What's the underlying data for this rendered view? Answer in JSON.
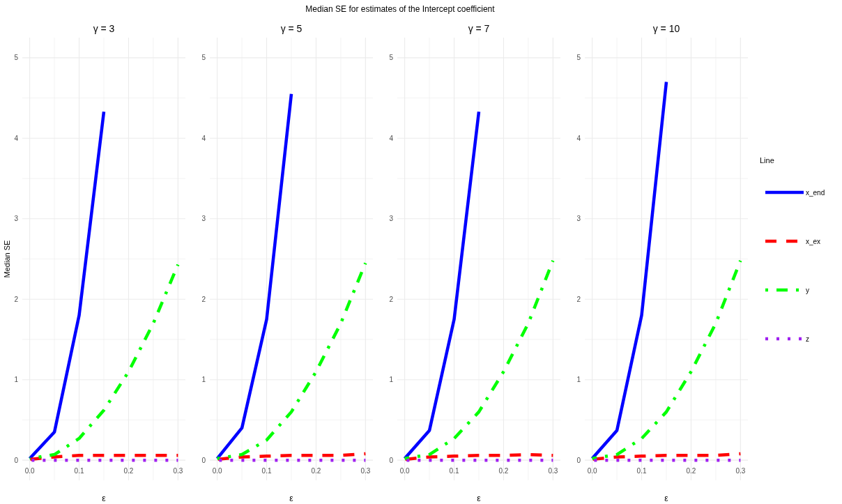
{
  "chart_data": [
    {
      "type": "line",
      "title": "γ = 3",
      "xlabel": "ε",
      "ylabel": "Median SE",
      "annotations": [
        "Median SE for estimates of the Intercept coefficient"
      ],
      "x": [
        0,
        0.05,
        0.1,
        0.15,
        0.2,
        0.25,
        0.3
      ],
      "xlim": [
        -0.015,
        0.315
      ],
      "ylim": [
        -0.25,
        5.25
      ],
      "xticks": [
        {
          "value": 0,
          "label": "0.0"
        },
        0.1,
        0.2,
        0.3,
        {
          "value": 0.05,
          "label": null
        },
        {
          "value": 0.15,
          "label": null
        },
        {
          "value": 0.25,
          "label": null
        }
      ],
      "yticks": [
        0,
        1,
        2,
        3,
        4,
        5,
        {
          "value": 0.5,
          "label": null
        },
        {
          "value": 1.5,
          "label": null
        },
        {
          "value": 2.5,
          "label": null
        },
        {
          "value": 3.5,
          "label": null
        },
        {
          "value": 4.5,
          "label": null
        }
      ],
      "grid": true,
      "legend": false,
      "series": [
        {
          "color": "#0000ff",
          "line_style": "solid",
          "values": [
            0.02,
            0.35,
            1.8,
            4.33,
            null,
            null,
            null
          ]
        },
        {
          "color": "#ff0000",
          "line_style": "dashed",
          "values": [
            0.01,
            0.04,
            0.06,
            0.06,
            0.06,
            0.06,
            0.06
          ]
        },
        {
          "color": "#00ff00",
          "line_style": "dashdot",
          "values": [
            0.02,
            0.07,
            0.27,
            0.62,
            1.1,
            1.7,
            2.43
          ]
        },
        {
          "color": "#a020f0",
          "line_style": "dotted",
          "values": [
            0,
            0,
            0,
            0,
            0,
            0,
            0
          ]
        }
      ]
    },
    {
      "type": "line",
      "title": "γ = 5",
      "xlabel": "ε",
      "x": [
        0,
        0.05,
        0.1,
        0.15,
        0.2,
        0.25,
        0.3
      ],
      "xlim": [
        -0.015,
        0.315
      ],
      "ylim": [
        -0.25,
        5.25
      ],
      "xticks": [
        {
          "value": 0,
          "label": "0.0"
        },
        0.1,
        0.2,
        0.3,
        {
          "value": 0.05,
          "label": null
        },
        {
          "value": 0.15,
          "label": null
        },
        {
          "value": 0.25,
          "label": null
        }
      ],
      "yticks": [
        0,
        1,
        2,
        3,
        4,
        5,
        {
          "value": 0.5,
          "label": null
        },
        {
          "value": 1.5,
          "label": null
        },
        {
          "value": 2.5,
          "label": null
        },
        {
          "value": 3.5,
          "label": null
        },
        {
          "value": 4.5,
          "label": null
        }
      ],
      "grid": true,
      "legend": false,
      "series": [
        {
          "color": "#0000ff",
          "line_style": "solid",
          "values": [
            0.02,
            0.4,
            1.75,
            4.55,
            null,
            null,
            null
          ]
        },
        {
          "color": "#ff0000",
          "line_style": "dashed",
          "values": [
            0.01,
            0.04,
            0.05,
            0.06,
            0.06,
            0.06,
            0.08
          ]
        },
        {
          "color": "#00ff00",
          "line_style": "dashdot",
          "values": [
            0.02,
            0.07,
            0.25,
            0.6,
            1.1,
            1.7,
            2.45
          ]
        },
        {
          "color": "#a020f0",
          "line_style": "dotted",
          "values": [
            0,
            0,
            0,
            0,
            0,
            0,
            0
          ]
        }
      ]
    },
    {
      "type": "line",
      "title": "γ = 7",
      "xlabel": "ε",
      "x": [
        0,
        0.05,
        0.1,
        0.15,
        0.2,
        0.25,
        0.3
      ],
      "xlim": [
        -0.015,
        0.315
      ],
      "ylim": [
        -0.25,
        5.25
      ],
      "xticks": [
        {
          "value": 0,
          "label": "0.0"
        },
        0.1,
        0.2,
        0.3,
        {
          "value": 0.05,
          "label": null
        },
        {
          "value": 0.15,
          "label": null
        },
        {
          "value": 0.25,
          "label": null
        }
      ],
      "yticks": [
        0,
        1,
        2,
        3,
        4,
        5,
        {
          "value": 0.5,
          "label": null
        },
        {
          "value": 1.5,
          "label": null
        },
        {
          "value": 2.5,
          "label": null
        },
        {
          "value": 3.5,
          "label": null
        },
        {
          "value": 4.5,
          "label": null
        }
      ],
      "grid": true,
      "legend": false,
      "series": [
        {
          "color": "#0000ff",
          "line_style": "solid",
          "values": [
            0.02,
            0.37,
            1.75,
            4.33,
            null,
            null,
            null
          ]
        },
        {
          "color": "#ff0000",
          "line_style": "dashed",
          "values": [
            0.01,
            0.04,
            0.05,
            0.06,
            0.06,
            0.07,
            0.06
          ]
        },
        {
          "color": "#00ff00",
          "line_style": "dashdot",
          "values": [
            0.02,
            0.07,
            0.27,
            0.6,
            1.1,
            1.7,
            2.48
          ]
        },
        {
          "color": "#a020f0",
          "line_style": "dotted",
          "values": [
            0,
            0,
            0,
            0,
            0,
            0,
            0
          ]
        }
      ]
    },
    {
      "type": "line",
      "title": "γ = 10",
      "xlabel": "ε",
      "legend_title": "Line",
      "x": [
        0,
        0.05,
        0.1,
        0.15,
        0.2,
        0.25,
        0.3
      ],
      "xlim": [
        -0.015,
        0.315
      ],
      "ylim": [
        -0.25,
        5.25
      ],
      "xticks": [
        {
          "value": 0,
          "label": "0.0"
        },
        0.1,
        0.2,
        0.3,
        {
          "value": 0.05,
          "label": null
        },
        {
          "value": 0.15,
          "label": null
        },
        {
          "value": 0.25,
          "label": null
        }
      ],
      "yticks": [
        0,
        1,
        2,
        3,
        4,
        5,
        {
          "value": 0.5,
          "label": null
        },
        {
          "value": 1.5,
          "label": null
        },
        {
          "value": 2.5,
          "label": null
        },
        {
          "value": 3.5,
          "label": null
        },
        {
          "value": 4.5,
          "label": null
        }
      ],
      "grid": true,
      "legend": "right",
      "series": [
        {
          "name": "x_end",
          "color": "#0000ff",
          "line_style": "solid",
          "values": [
            0.02,
            0.37,
            1.8,
            4.7,
            null,
            null,
            null
          ]
        },
        {
          "name": "x_ex",
          "color": "#ff0000",
          "line_style": "dashed",
          "values": [
            0.01,
            0.04,
            0.05,
            0.06,
            0.06,
            0.06,
            0.08
          ]
        },
        {
          "name": "y",
          "color": "#00ff00",
          "line_style": "dashdot",
          "values": [
            0.02,
            0.07,
            0.27,
            0.6,
            1.1,
            1.7,
            2.48
          ]
        },
        {
          "name": "z",
          "color": "#a020f0",
          "line_style": "dotted",
          "values": [
            0,
            0,
            0,
            0,
            0,
            0,
            0
          ]
        }
      ]
    }
  ]
}
